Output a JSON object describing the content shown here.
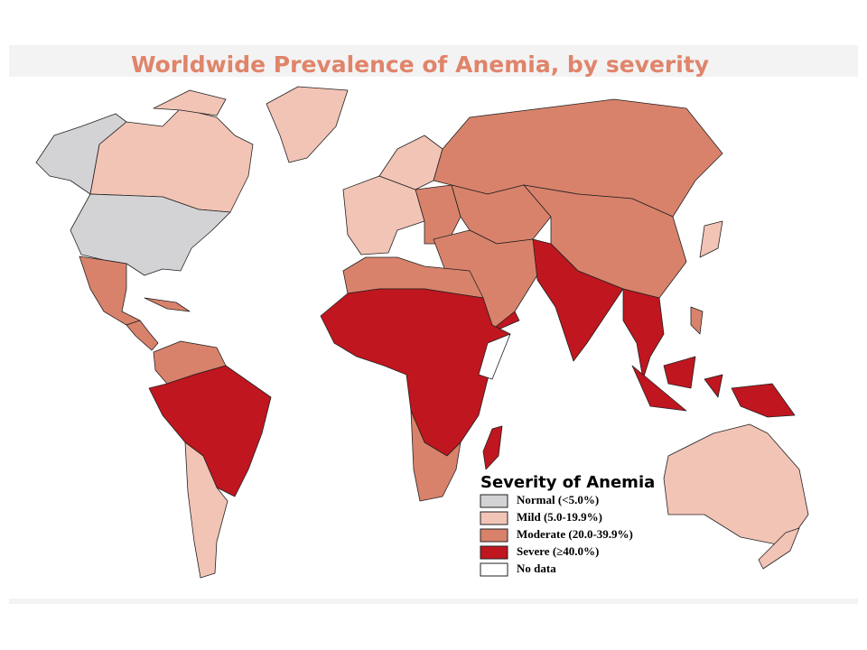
{
  "title": "Worldwide Prevalence of Anemia, by severity",
  "legend": {
    "title": "Severity of Anemia",
    "items": [
      {
        "label": "Normal (<5.0%)",
        "color": "#d3d3d5"
      },
      {
        "label": "Mild (5.0-19.9%)",
        "color": "#f2c4b6"
      },
      {
        "label": "Moderate (20.0-39.9%)",
        "color": "#d9826b"
      },
      {
        "label": "Severe (≥40.0%)",
        "color": "#c0161f"
      },
      {
        "label": "No data",
        "color": "#ffffff"
      }
    ]
  }
}
